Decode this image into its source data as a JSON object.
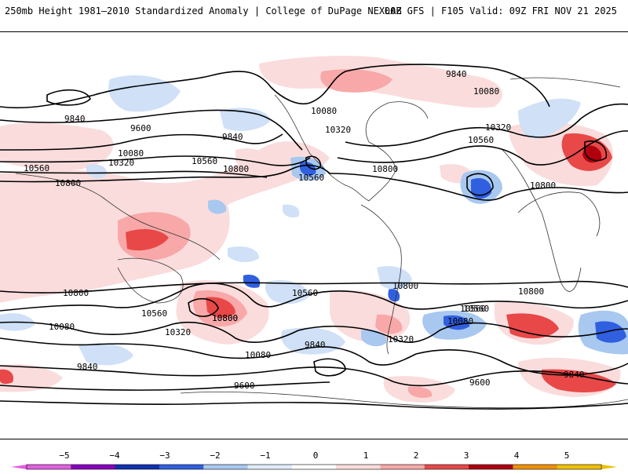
{
  "header": {
    "title_left": "250mb Height 1981–2010 Standardized Anomaly | College of DuPage NEXLAB",
    "title_right": "00Z GFS | F105 Valid: 09Z FRI NOV 21 2025"
  },
  "map": {
    "contour_labels": {
      "l1": "9840",
      "l2": "9600",
      "l3": "9840",
      "l4": "10080",
      "l5": "10320",
      "l6": "10560",
      "l7": "10800",
      "l8": "10560",
      "l9": "10800",
      "l10": "10080",
      "l11": "10320",
      "l12": "10560",
      "l13": "10800",
      "l14": "9840",
      "l15": "10080",
      "l16": "10320",
      "l17": "10560",
      "l18": "10800",
      "l19": "10800",
      "l20": "10560",
      "l21": "10800",
      "l22": "10080",
      "l23": "10560",
      "l24": "10800",
      "l25": "10320",
      "l26": "10080",
      "l27": "9840",
      "l28": "9600",
      "l29": "10800",
      "l30": "10560",
      "l31": "10320",
      "l32": "10560",
      "l33": "10080",
      "l34": "9840",
      "l35": "10800",
      "l36": "9600",
      "l37": "9840"
    }
  },
  "colorbar": {
    "labels": [
      "−5",
      "−4",
      "−3",
      "−2",
      "−1",
      "0",
      "1",
      "2",
      "3",
      "4",
      "5"
    ],
    "colors": [
      "#e060e0",
      "#8a00c0",
      "#1030b0",
      "#3060e0",
      "#a8c8f0",
      "#e0ecfa",
      "#ffffff",
      "#fadcdc",
      "#f8a8a8",
      "#e84848",
      "#b00010",
      "#f09000",
      "#f0c000"
    ]
  }
}
